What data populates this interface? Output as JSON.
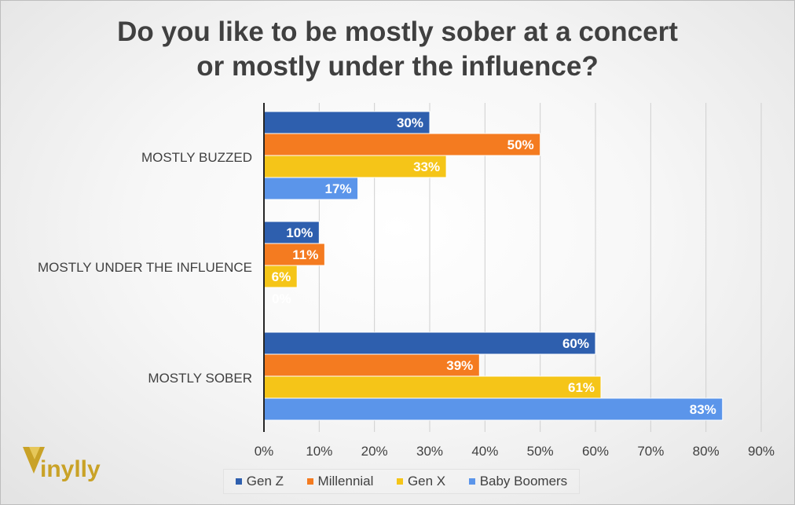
{
  "title": {
    "line1": "Do you like to be mostly sober at a concert",
    "line2": "or mostly under the influence?"
  },
  "brand": {
    "name": "inylly",
    "color": "#c9a227"
  },
  "chart_data": {
    "type": "bar",
    "orientation": "horizontal",
    "categories": [
      "MOSTLY BUZZED",
      "MOSTLY UNDER THE INFLUENCE",
      "MOSTLY SOBER"
    ],
    "series": [
      {
        "name": "Gen Z",
        "color": "#2e5fae",
        "values": [
          30,
          10,
          60
        ]
      },
      {
        "name": "Millennial",
        "color": "#f47b20",
        "values": [
          50,
          11,
          39
        ]
      },
      {
        "name": "Gen X",
        "color": "#f5c518",
        "values": [
          33,
          6,
          61
        ]
      },
      {
        "name": "Baby Boomers",
        "color": "#5b95ea",
        "values": [
          17,
          0,
          83
        ]
      }
    ],
    "xlim": [
      0,
      90
    ],
    "x_ticks": [
      "0%",
      "10%",
      "20%",
      "30%",
      "40%",
      "50%",
      "60%",
      "70%",
      "80%",
      "90%"
    ],
    "value_suffix": "%",
    "grid": "vertical",
    "legend_position": "bottom"
  }
}
